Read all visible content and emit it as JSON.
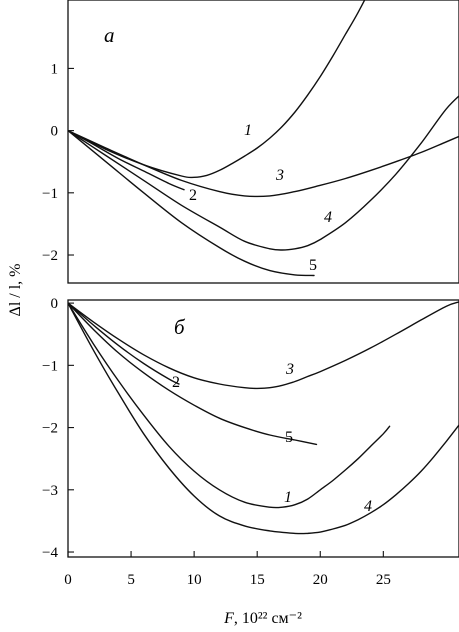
{
  "chart_data": [
    {
      "type": "line",
      "panel_label": "а",
      "xlim": [
        0,
        31
      ],
      "ylim": [
        -2.45,
        2.1
      ],
      "yticks": [
        1,
        0,
        -1,
        -2
      ],
      "ytick_labels": [
        "1",
        "0",
        "−1",
        "−2"
      ],
      "grid": false,
      "series": [
        {
          "name": "1",
          "x": [
            0,
            3,
            6,
            9,
            10,
            11,
            12,
            13,
            14,
            15,
            16,
            17,
            18,
            19,
            20,
            21,
            22,
            23,
            24,
            24.5
          ],
          "y": [
            0,
            -0.3,
            -0.55,
            -0.73,
            -0.75,
            -0.72,
            -0.64,
            -0.53,
            -0.41,
            -0.28,
            -0.12,
            0.07,
            0.3,
            0.57,
            0.87,
            1.2,
            1.55,
            1.9,
            2.3,
            2.55
          ]
        },
        {
          "name": "2",
          "x": [
            0,
            2,
            4,
            6,
            8,
            9.2
          ],
          "y": [
            0,
            -0.22,
            -0.45,
            -0.65,
            -0.85,
            -0.95
          ]
        },
        {
          "name": "3",
          "x": [
            0,
            3,
            6,
            9,
            12,
            14,
            16,
            18,
            20,
            22,
            24,
            26,
            28,
            30,
            31.5
          ],
          "y": [
            0,
            -0.28,
            -0.55,
            -0.8,
            -0.98,
            -1.05,
            -1.05,
            -0.98,
            -0.88,
            -0.77,
            -0.64,
            -0.5,
            -0.35,
            -0.18,
            -0.05
          ]
        },
        {
          "name": "4",
          "x": [
            0,
            3,
            6,
            9,
            12,
            14,
            16,
            17,
            18,
            19,
            20,
            22,
            24,
            26,
            28,
            30,
            31.5
          ],
          "y": [
            0,
            -0.4,
            -0.8,
            -1.2,
            -1.55,
            -1.78,
            -1.9,
            -1.92,
            -1.9,
            -1.85,
            -1.75,
            -1.48,
            -1.12,
            -0.7,
            -0.2,
            0.35,
            0.65
          ]
        },
        {
          "name": "5",
          "x": [
            0,
            3,
            6,
            9,
            12,
            14,
            16,
            18,
            19.5
          ],
          "y": [
            0,
            -0.5,
            -1.0,
            -1.48,
            -1.88,
            -2.1,
            -2.25,
            -2.32,
            -2.33
          ]
        }
      ],
      "annotations": [
        "1",
        "2",
        "3",
        "4",
        "5"
      ]
    },
    {
      "type": "line",
      "panel_label": "б",
      "xlim": [
        0,
        31
      ],
      "ylim": [
        -4.08,
        0.05
      ],
      "yticks": [
        0,
        -1,
        -2,
        -3,
        -4
      ],
      "ytick_labels": [
        "0",
        "−1",
        "−2",
        "−3",
        "−4"
      ],
      "xticks": [
        0,
        5,
        10,
        15,
        20,
        25
      ],
      "xtick_labels": [
        "0",
        "5",
        "10",
        "15",
        "20",
        "25"
      ],
      "xlabel_var": "F",
      "xlabel_unit": ", 10²² см⁻²",
      "grid": false,
      "series": [
        {
          "name": "1",
          "x": [
            0,
            2,
            4,
            6,
            8,
            10,
            12,
            14,
            16,
            17,
            18,
            19,
            20,
            21,
            22,
            23,
            24,
            25,
            25.5
          ],
          "y": [
            0,
            -0.65,
            -1.25,
            -1.8,
            -2.3,
            -2.7,
            -3.0,
            -3.2,
            -3.28,
            -3.28,
            -3.24,
            -3.15,
            -3.0,
            -2.85,
            -2.68,
            -2.5,
            -2.3,
            -2.1,
            -1.98
          ]
        },
        {
          "name": "2",
          "x": [
            0,
            2,
            4,
            6,
            8,
            8.8
          ],
          "y": [
            0,
            -0.35,
            -0.68,
            -0.97,
            -1.22,
            -1.3
          ]
        },
        {
          "name": "3",
          "x": [
            0,
            2,
            4,
            6,
            8,
            10,
            12,
            14,
            15,
            16,
            17,
            18,
            19,
            20,
            22,
            24,
            26,
            28,
            30,
            31
          ],
          "y": [
            0,
            -0.3,
            -0.58,
            -0.83,
            -1.04,
            -1.2,
            -1.3,
            -1.36,
            -1.37,
            -1.36,
            -1.32,
            -1.26,
            -1.18,
            -1.1,
            -0.92,
            -0.72,
            -0.5,
            -0.27,
            -0.05,
            0.02
          ]
        },
        {
          "name": "4",
          "x": [
            0,
            2,
            4,
            6,
            8,
            10,
            12,
            14,
            16,
            18,
            19,
            20,
            21,
            22,
            23,
            24,
            25,
            26,
            27,
            28,
            29,
            30,
            31
          ],
          "y": [
            0,
            -0.75,
            -1.45,
            -2.1,
            -2.65,
            -3.1,
            -3.42,
            -3.58,
            -3.66,
            -3.7,
            -3.7,
            -3.68,
            -3.63,
            -3.57,
            -3.48,
            -3.37,
            -3.24,
            -3.08,
            -2.9,
            -2.7,
            -2.47,
            -2.22,
            -1.96
          ]
        },
        {
          "name": "5",
          "x": [
            0,
            2,
            4,
            6,
            8,
            10,
            12,
            14,
            16,
            18,
            19.7
          ],
          "y": [
            0,
            -0.42,
            -0.8,
            -1.12,
            -1.4,
            -1.64,
            -1.85,
            -2.0,
            -2.12,
            -2.2,
            -2.27
          ]
        }
      ],
      "annotations": [
        "1",
        "2",
        "3",
        "4",
        "5"
      ]
    }
  ],
  "ylabel": "Δl / l, %"
}
